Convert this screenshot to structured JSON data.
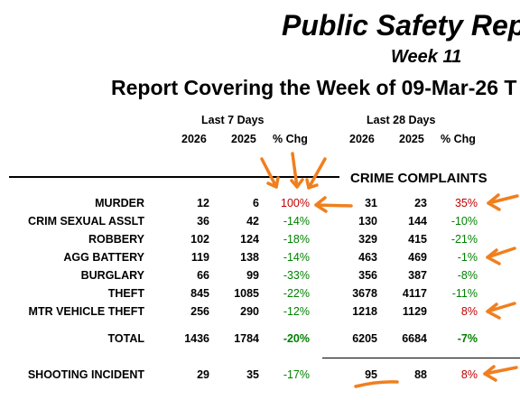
{
  "header": {
    "title": "Public Safety Rep",
    "week": "Week 11",
    "covering": "Report Covering the Week of 09-Mar-26 T"
  },
  "columns": {
    "group_7": "Last 7 Days",
    "group_28": "Last 28 Days",
    "year_a": "2026",
    "year_b": "2025",
    "chg": "% Chg"
  },
  "section_title": "CRIME COMPLAINTS",
  "rows": [
    {
      "label": "MURDER",
      "a7": "12",
      "b7": "6",
      "c7": "100%",
      "a28": "31",
      "b28": "23",
      "c28": "35%"
    },
    {
      "label": "CRIM SEXUAL ASSLT",
      "a7": "36",
      "b7": "42",
      "c7": "-14%",
      "a28": "130",
      "b28": "144",
      "c28": "-10%"
    },
    {
      "label": "ROBBERY",
      "a7": "102",
      "b7": "124",
      "c7": "-18%",
      "a28": "329",
      "b28": "415",
      "c28": "-21%"
    },
    {
      "label": "AGG BATTERY",
      "a7": "119",
      "b7": "138",
      "c7": "-14%",
      "a28": "463",
      "b28": "469",
      "c28": "-1%"
    },
    {
      "label": "BURGLARY",
      "a7": "66",
      "b7": "99",
      "c7": "-33%",
      "a28": "356",
      "b28": "387",
      "c28": "-8%"
    },
    {
      "label": "THEFT",
      "a7": "845",
      "b7": "1085",
      "c7": "-22%",
      "a28": "3678",
      "b28": "4117",
      "c28": "-11%"
    },
    {
      "label": "MTR VEHICLE THEFT",
      "a7": "256",
      "b7": "290",
      "c7": "-12%",
      "a28": "1218",
      "b28": "1129",
      "c28": "8%"
    }
  ],
  "total": {
    "label": "TOTAL",
    "a7": "1436",
    "b7": "1784",
    "c7": "-20%",
    "a28": "6205",
    "b28": "6684",
    "c28": "-7%"
  },
  "shooting": {
    "label": "SHOOTING INCIDENT",
    "a7": "29",
    "b7": "35",
    "c7": "-17%",
    "a28": "95",
    "b28": "88",
    "c28": "8%"
  },
  "colors": {
    "increase": "#c00000",
    "decrease": "#008000",
    "annotation": "#f07f1e"
  }
}
